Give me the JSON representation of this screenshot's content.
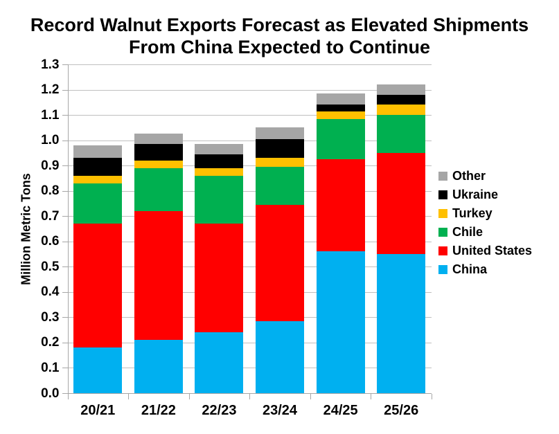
{
  "title": {
    "line1": "Record Walnut Exports Forecast as Elevated Shipments",
    "line2": "From China Expected to Continue"
  },
  "colors": {
    "background": "#FFFFFF",
    "text": "#000000",
    "gridline": "#BFBFBF",
    "axis": "#A6A6A6"
  },
  "chart_data": {
    "type": "bar",
    "stacked": true,
    "title": "Record Walnut Exports Forecast as Elevated Shipments From China Expected to Continue",
    "categories": [
      "20/21",
      "21/22",
      "22/23",
      "23/24",
      "24/25",
      "25/26"
    ],
    "series": [
      {
        "name": "China",
        "color": "#00B0F0",
        "values": [
          0.18,
          0.21,
          0.24,
          0.285,
          0.56,
          0.55
        ]
      },
      {
        "name": "United States",
        "color": "#FF0000",
        "values": [
          0.49,
          0.51,
          0.43,
          0.46,
          0.365,
          0.4
        ]
      },
      {
        "name": "Chile",
        "color": "#00B050",
        "values": [
          0.16,
          0.17,
          0.19,
          0.15,
          0.16,
          0.15
        ]
      },
      {
        "name": "Turkey",
        "color": "#FFC000",
        "values": [
          0.03,
          0.03,
          0.03,
          0.035,
          0.03,
          0.04
        ]
      },
      {
        "name": "Ukraine",
        "color": "#000000",
        "values": [
          0.07,
          0.065,
          0.055,
          0.075,
          0.025,
          0.04
        ]
      },
      {
        "name": "Other",
        "color": "#A6A6A6",
        "values": [
          0.05,
          0.04,
          0.04,
          0.045,
          0.045,
          0.04
        ]
      }
    ],
    "totals": [
      0.98,
      1.025,
      0.985,
      1.05,
      1.185,
      1.22
    ],
    "xlabel": "",
    "ylabel": "Million Metric Tons",
    "ylim": [
      0.0,
      1.3
    ],
    "ytick_step": 0.1,
    "ytick_labels": [
      "0.0",
      "0.1",
      "0.2",
      "0.3",
      "0.4",
      "0.5",
      "0.6",
      "0.7",
      "0.8",
      "0.9",
      "1.0",
      "1.1",
      "1.2",
      "1.3"
    ],
    "grid": true,
    "legend_position": "right",
    "legend_order": [
      "Other",
      "Ukraine",
      "Turkey",
      "Chile",
      "United States",
      "China"
    ]
  }
}
